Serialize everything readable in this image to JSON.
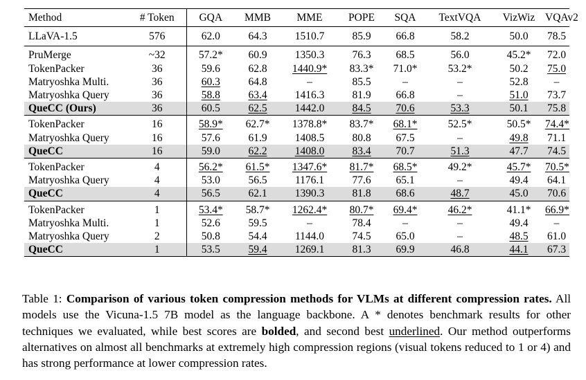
{
  "columns": [
    "Method",
    "# Token",
    "GQA",
    "MMB",
    "MME",
    "POPE",
    "SQA",
    "TextVQA",
    "VizWiz",
    "VQAv2"
  ],
  "baseline": {
    "method": "LLaVA-1.5",
    "tokens": "576",
    "values": [
      "62.0",
      "64.3",
      "1510.7",
      "85.9",
      "66.8",
      "58.2",
      "50.0",
      "78.5"
    ]
  },
  "groups": [
    {
      "rows": [
        {
          "method": "PruMerge",
          "tokens": "~32",
          "cells": [
            {
              "v": "57.2*"
            },
            {
              "v": "60.9"
            },
            {
              "v": "1350.3"
            },
            {
              "v": "76.3"
            },
            {
              "v": "68.5"
            },
            {
              "v": "56.0",
              "s": "b"
            },
            {
              "v": "45.2*"
            },
            {
              "v": "72.0"
            }
          ]
        },
        {
          "method": "TokenPacker",
          "tokens": "36",
          "cells": [
            {
              "v": "59.6"
            },
            {
              "v": "62.8"
            },
            {
              "v": "1440.9*",
              "s": "u"
            },
            {
              "v": "83.3*"
            },
            {
              "v": "71.0*",
              "s": "b"
            },
            {
              "v": "53.2*"
            },
            {
              "v": "50.2"
            },
            {
              "v": "75.0",
              "s": "u"
            }
          ]
        },
        {
          "method": "Matryoshka Multi.",
          "tokens": "36",
          "cells": [
            {
              "v": "60.3",
              "s": "u"
            },
            {
              "v": "64.8",
              "s": "b"
            },
            {
              "v": "–"
            },
            {
              "v": "85.5",
              "s": "b"
            },
            {
              "v": "–"
            },
            {
              "v": "–"
            },
            {
              "v": "52.8",
              "s": "b"
            },
            {
              "v": "–"
            }
          ]
        },
        {
          "method": "Matryoshka Query",
          "tokens": "36",
          "cells": [
            {
              "v": "58.8",
              "s": "u"
            },
            {
              "v": "63.4",
              "s": "u"
            },
            {
              "v": "1416.3"
            },
            {
              "v": "81.9"
            },
            {
              "v": "66.8"
            },
            {
              "v": "–"
            },
            {
              "v": "51.0",
              "s": "u"
            },
            {
              "v": "73.7"
            }
          ]
        },
        {
          "method": "QueCC (Ours)",
          "tokens": "36",
          "highlight": true,
          "cells": [
            {
              "v": "60.5",
              "s": "b"
            },
            {
              "v": "62.5",
              "s": "u"
            },
            {
              "v": "1442.0",
              "s": "b"
            },
            {
              "v": "84.5",
              "s": "u"
            },
            {
              "v": "70.6",
              "s": "u"
            },
            {
              "v": "53.3",
              "s": "u"
            },
            {
              "v": "50.1"
            },
            {
              "v": "75.8",
              "s": "b"
            }
          ]
        }
      ]
    },
    {
      "rows": [
        {
          "method": "TokenPacker",
          "tokens": "16",
          "cells": [
            {
              "v": "58.9*",
              "s": "u"
            },
            {
              "v": "62.7*",
              "s": "b"
            },
            {
              "v": "1378.8*"
            },
            {
              "v": "83.7*",
              "s": "b"
            },
            {
              "v": "68.1*",
              "s": "u"
            },
            {
              "v": "52.5*",
              "s": "b"
            },
            {
              "v": "50.5*",
              "s": "b"
            },
            {
              "v": "74.4*",
              "s": "u"
            }
          ]
        },
        {
          "method": "Matryoshka Query",
          "tokens": "16",
          "cells": [
            {
              "v": "57.6"
            },
            {
              "v": "61.9"
            },
            {
              "v": "1408.5",
              "s": "b"
            },
            {
              "v": "80.8"
            },
            {
              "v": "67.5"
            },
            {
              "v": "–"
            },
            {
              "v": "49.8",
              "s": "u"
            },
            {
              "v": "71.1"
            }
          ]
        },
        {
          "method": "QueCC",
          "tokens": "16",
          "highlight": true,
          "cells": [
            {
              "v": "59.0",
              "s": "b"
            },
            {
              "v": "62.2",
              "s": "u"
            },
            {
              "v": "1408.0",
              "s": "u"
            },
            {
              "v": "83.4",
              "s": "u"
            },
            {
              "v": "70.7",
              "s": "b"
            },
            {
              "v": "51.3",
              "s": "u"
            },
            {
              "v": "47.7"
            },
            {
              "v": "74.5",
              "s": "b"
            }
          ]
        }
      ]
    },
    {
      "rows": [
        {
          "method": "TokenPacker",
          "tokens": "4",
          "cells": [
            {
              "v": "56.2*",
              "s": "u"
            },
            {
              "v": "61.5*",
              "s": "u"
            },
            {
              "v": "1347.6*",
              "s": "u"
            },
            {
              "v": "81.7*",
              "s": "u"
            },
            {
              "v": "68.5*",
              "s": "u"
            },
            {
              "v": "49.2*",
              "s": "b"
            },
            {
              "v": "45.7*",
              "s": "u"
            },
            {
              "v": "70.5*",
              "s": "u"
            }
          ]
        },
        {
          "method": "Matryoshka Query",
          "tokens": "4",
          "cells": [
            {
              "v": "53.0"
            },
            {
              "v": "56.5"
            },
            {
              "v": "1176.1"
            },
            {
              "v": "77.6"
            },
            {
              "v": "65.1"
            },
            {
              "v": "–"
            },
            {
              "v": "49.4",
              "s": "b"
            },
            {
              "v": "64.1"
            }
          ]
        },
        {
          "method": "QueCC",
          "tokens": "4",
          "highlight": true,
          "cells": [
            {
              "v": "56.5",
              "s": "b"
            },
            {
              "v": "62.1",
              "s": "b"
            },
            {
              "v": "1390.3",
              "s": "b"
            },
            {
              "v": "81.8",
              "s": "b"
            },
            {
              "v": "68.6",
              "s": "b"
            },
            {
              "v": "48.7",
              "s": "u"
            },
            {
              "v": "45.0"
            },
            {
              "v": "70.6",
              "s": "b"
            }
          ]
        }
      ]
    },
    {
      "rows": [
        {
          "method": "TokenPacker",
          "tokens": "1",
          "cells": [
            {
              "v": "53.4*",
              "s": "u"
            },
            {
              "v": "58.7*"
            },
            {
              "v": "1262.4*",
              "s": "u"
            },
            {
              "v": "80.7*",
              "s": "u"
            },
            {
              "v": "69.4*",
              "s": "u"
            },
            {
              "v": "46.2*",
              "s": "u"
            },
            {
              "v": "41.1*"
            },
            {
              "v": "66.9*",
              "s": "u"
            }
          ]
        },
        {
          "method": "Matryoshka Multi.",
          "tokens": "1",
          "cells": [
            {
              "v": "52.6"
            },
            {
              "v": "59.5",
              "s": "b"
            },
            {
              "v": "–"
            },
            {
              "v": "78.4"
            },
            {
              "v": "–"
            },
            {
              "v": "–"
            },
            {
              "v": "49.4",
              "s": "b"
            },
            {
              "v": "–"
            }
          ]
        },
        {
          "method": "Matryoshka Query",
          "tokens": "2",
          "cells": [
            {
              "v": "50.8"
            },
            {
              "v": "54.4"
            },
            {
              "v": "1144.0"
            },
            {
              "v": "74.5"
            },
            {
              "v": "65.0"
            },
            {
              "v": "–"
            },
            {
              "v": "48.5",
              "s": "u"
            },
            {
              "v": "61.0"
            }
          ]
        },
        {
          "method": "QueCC",
          "tokens": "1",
          "highlight": true,
          "cells": [
            {
              "v": "53.5",
              "s": "b"
            },
            {
              "v": "59.4",
              "s": "u"
            },
            {
              "v": "1269.1",
              "s": "b"
            },
            {
              "v": "81.3",
              "s": "b"
            },
            {
              "v": "69.9",
              "s": "b"
            },
            {
              "v": "46.8",
              "s": "b"
            },
            {
              "v": "44.1",
              "s": "u"
            },
            {
              "v": "67.3",
              "s": "b"
            }
          ]
        }
      ]
    }
  ],
  "caption": {
    "label": "Table 1: ",
    "title": "Comparison of various token compression methods for VLMs at different compression rates.",
    "text_1": " All models use the Vicuna-1.5 7B model as the language backbone. A * denotes benchmark results for other techniques we evaluated, while best scores are ",
    "bolded_word": "bolded",
    "text_2": ", and second best ",
    "underlined_word": "underlined",
    "text_3": ". Our method outperforms alternatives on almost all benchmarks at extremely high compression regions (visual tokens reduced to 1 or 4) and has strong performance at lower compression rates."
  }
}
